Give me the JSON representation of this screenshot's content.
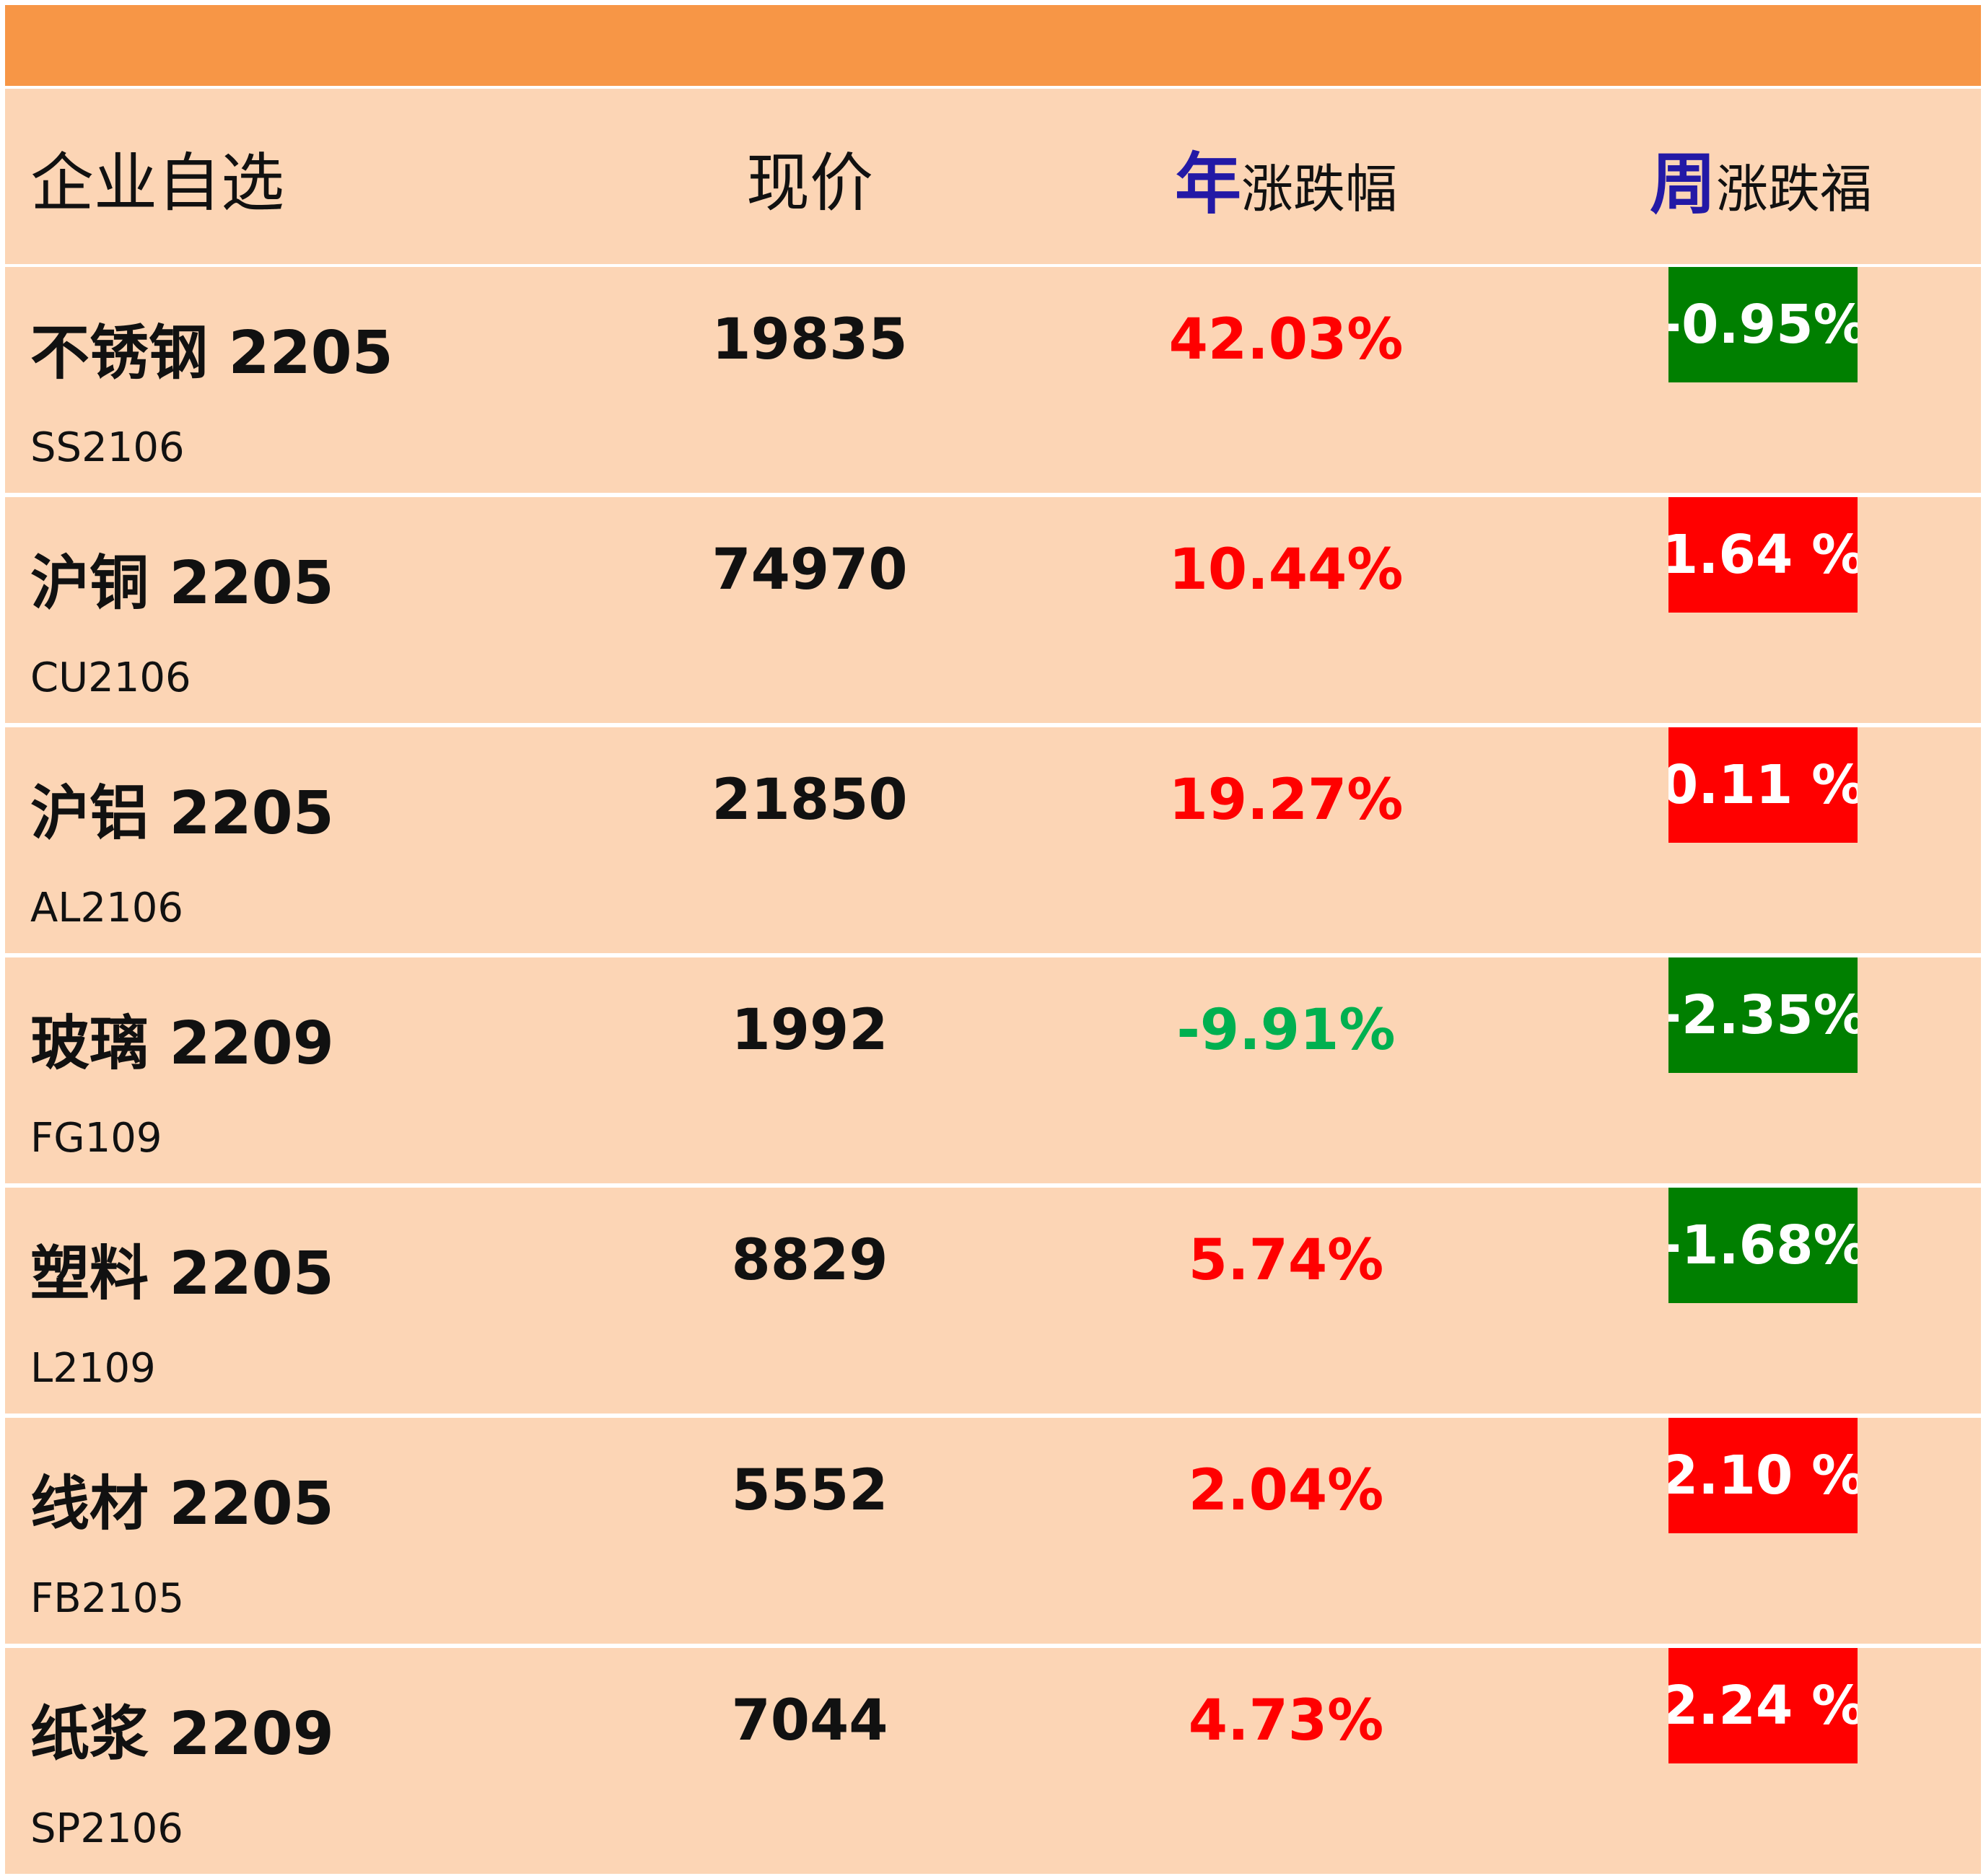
{
  "colors": {
    "top_bar": "#F79646",
    "row_background": "#FCD5B5",
    "header_accent": "#2319A6",
    "up": "#FF0000",
    "down_text": "#00B050",
    "down_box": "#007F00"
  },
  "header": {
    "name": "企业自选",
    "price": "现价",
    "year_accent": "年",
    "year_rest": "涨跌幅",
    "week_accent": "周",
    "week_rest": "涨跌福"
  },
  "rows": [
    {
      "name": "不锈钢 2205",
      "code": "SS2106",
      "price": "19835",
      "year": "42.03%",
      "year_dir": "up",
      "week": "-0.95%",
      "week_dir": "down"
    },
    {
      "name": "沪铜 2205",
      "code": "CU2106",
      "price": "74970",
      "year": "10.44%",
      "year_dir": "up",
      "week": "1.64 %",
      "week_dir": "up"
    },
    {
      "name": "沪铝 2205",
      "code": "AL2106",
      "price": "21850",
      "year": "19.27%",
      "year_dir": "up",
      "week": "0.11 %",
      "week_dir": "up"
    },
    {
      "name": "玻璃 2209",
      "code": "FG109",
      "price": "1992",
      "year": "-9.91%",
      "year_dir": "down",
      "week": "-2.35%",
      "week_dir": "down"
    },
    {
      "name": "塑料 2205",
      "code": "L2109",
      "price": "8829",
      "year": "5.74%",
      "year_dir": "up",
      "week": "-1.68%",
      "week_dir": "down"
    },
    {
      "name": "线材 2205",
      "code": "FB2105",
      "price": "5552",
      "year": "2.04%",
      "year_dir": "up",
      "week": "2.10 %",
      "week_dir": "up"
    },
    {
      "name": "纸浆 2209",
      "code": "SP2106",
      "price": "7044",
      "year": "4.73%",
      "year_dir": "up",
      "week": "2.24 %",
      "week_dir": "up"
    }
  ]
}
